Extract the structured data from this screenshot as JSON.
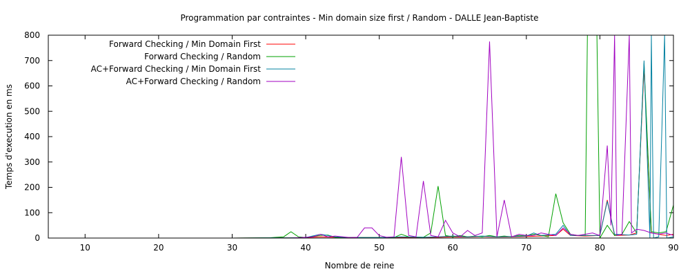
{
  "chart_data": {
    "type": "line",
    "title": "Programmation par contraintes - Min domain size first / Random - DALLE Jean-Baptiste",
    "xlabel": "Nombre de reine",
    "ylabel": "Temps d'execution en ms",
    "xlim": [
      5,
      90
    ],
    "ylim": [
      0,
      800
    ],
    "xticks": [
      10,
      20,
      30,
      40,
      50,
      60,
      70,
      80,
      90
    ],
    "yticks": [
      0,
      100,
      200,
      300,
      400,
      500,
      600,
      700,
      800
    ],
    "grid": false,
    "legend_position": "top-left",
    "series": [
      {
        "name": "Forward Checking / Min Domain First",
        "color": "#ff0000",
        "dashed": false,
        "points": [
          [
            6,
            0
          ],
          [
            10,
            0
          ],
          [
            20,
            0
          ],
          [
            30,
            0
          ],
          [
            38,
            1
          ],
          [
            40,
            2
          ],
          [
            42,
            5
          ],
          [
            44,
            3
          ],
          [
            46,
            2
          ],
          [
            50,
            2
          ],
          [
            53,
            3
          ],
          [
            55,
            2
          ],
          [
            58,
            3
          ],
          [
            60,
            5
          ],
          [
            62,
            4
          ],
          [
            64,
            6
          ],
          [
            66,
            4
          ],
          [
            68,
            5
          ],
          [
            70,
            6
          ],
          [
            72,
            8
          ],
          [
            74,
            10
          ],
          [
            75,
            35
          ],
          [
            76,
            10
          ],
          [
            78,
            8
          ],
          [
            80,
            10
          ],
          [
            81,
            150
          ],
          [
            82,
            10
          ],
          [
            84,
            12
          ],
          [
            85,
            20
          ],
          [
            86,
            670
          ],
          [
            87,
            20
          ],
          [
            88,
            15
          ],
          [
            89,
            10
          ],
          [
            90,
            15
          ]
        ]
      },
      {
        "name": "Forward Checking / Random",
        "color": "#00a000",
        "dashed": false,
        "points": [
          [
            6,
            0
          ],
          [
            8,
            0
          ],
          [
            12,
            0
          ],
          [
            20,
            0
          ],
          [
            30,
            0
          ],
          [
            35,
            1
          ],
          [
            36,
            3
          ],
          [
            37,
            5
          ],
          [
            38,
            25
          ],
          [
            39,
            5
          ],
          [
            40,
            2
          ],
          [
            42,
            10
          ],
          [
            43,
            12
          ],
          [
            44,
            3
          ],
          [
            46,
            2
          ],
          [
            50,
            2
          ],
          [
            52,
            2
          ],
          [
            53,
            15
          ],
          [
            54,
            5
          ],
          [
            56,
            3
          ],
          [
            57,
            20
          ],
          [
            58,
            205
          ],
          [
            59,
            10
          ],
          [
            60,
            5
          ],
          [
            61,
            10
          ],
          [
            62,
            5
          ],
          [
            63,
            8
          ],
          [
            64,
            5
          ],
          [
            65,
            10
          ],
          [
            66,
            5
          ],
          [
            67,
            8
          ],
          [
            68,
            5
          ],
          [
            69,
            10
          ],
          [
            70,
            8
          ],
          [
            71,
            15
          ],
          [
            72,
            10
          ],
          [
            73,
            5
          ],
          [
            74,
            175
          ],
          [
            75,
            60
          ],
          [
            76,
            15
          ],
          [
            77,
            10
          ],
          [
            78,
            10
          ],
          [
            78.3,
            800
          ],
          [
            79,
            800
          ],
          [
            79.6,
            800
          ],
          [
            80,
            0
          ],
          [
            81,
            50
          ],
          [
            82,
            10
          ],
          [
            83,
            15
          ],
          [
            84,
            65
          ],
          [
            85,
            20
          ],
          [
            86,
            690
          ],
          [
            87,
            25
          ],
          [
            88,
            20
          ],
          [
            89,
            25
          ],
          [
            90,
            130
          ]
        ]
      },
      {
        "name": "AC+Forward Checking / Min Domain First",
        "color": "#0080a0",
        "dashed": false,
        "points": [
          [
            6,
            0
          ],
          [
            10,
            0
          ],
          [
            20,
            0
          ],
          [
            30,
            0
          ],
          [
            38,
            1
          ],
          [
            40,
            2
          ],
          [
            42,
            15
          ],
          [
            43,
            10
          ],
          [
            44,
            5
          ],
          [
            46,
            2
          ],
          [
            50,
            2
          ],
          [
            53,
            5
          ],
          [
            56,
            3
          ],
          [
            58,
            5
          ],
          [
            60,
            8
          ],
          [
            62,
            5
          ],
          [
            64,
            8
          ],
          [
            66,
            5
          ],
          [
            68,
            6
          ],
          [
            70,
            8
          ],
          [
            71,
            20
          ],
          [
            72,
            10
          ],
          [
            74,
            15
          ],
          [
            75,
            50
          ],
          [
            76,
            10
          ],
          [
            78,
            10
          ],
          [
            80,
            10
          ],
          [
            81,
            145
          ],
          [
            82,
            15
          ],
          [
            84,
            12
          ],
          [
            85,
            15
          ],
          [
            86,
            700
          ],
          [
            86.8,
            0
          ],
          [
            87,
            800
          ],
          [
            87.3,
            0
          ],
          [
            88,
            5
          ],
          [
            88.8,
            800
          ],
          [
            89.1,
            0
          ],
          [
            90,
            5
          ]
        ]
      },
      {
        "name": "AC+Forward Checking / Random",
        "color": "#a000c0",
        "dashed": false,
        "points": [
          [
            6,
            0
          ],
          [
            13,
            0
          ],
          [
            14,
            0
          ],
          [
            20,
            0
          ],
          [
            26,
            0
          ],
          [
            28,
            0
          ],
          [
            30,
            0
          ],
          [
            34,
            0
          ],
          [
            36,
            0
          ],
          [
            38,
            0
          ],
          [
            40,
            3
          ],
          [
            41,
            5
          ],
          [
            42,
            15
          ],
          [
            43,
            5
          ],
          [
            44,
            8
          ],
          [
            46,
            2
          ],
          [
            47,
            3
          ],
          [
            48,
            40
          ],
          [
            49,
            40
          ],
          [
            50,
            10
          ],
          [
            51,
            3
          ],
          [
            52,
            5
          ],
          [
            53,
            320
          ],
          [
            54,
            10
          ],
          [
            55,
            5
          ],
          [
            56,
            225
          ],
          [
            57,
            10
          ],
          [
            58,
            5
          ],
          [
            59,
            70
          ],
          [
            60,
            20
          ],
          [
            61,
            5
          ],
          [
            62,
            30
          ],
          [
            63,
            10
          ],
          [
            64,
            20
          ],
          [
            65,
            775
          ],
          [
            66,
            5
          ],
          [
            67,
            150
          ],
          [
            68,
            5
          ],
          [
            69,
            15
          ],
          [
            70,
            10
          ],
          [
            71,
            10
          ],
          [
            72,
            20
          ],
          [
            73,
            15
          ],
          [
            74,
            10
          ],
          [
            75,
            40
          ],
          [
            76,
            15
          ],
          [
            77,
            10
          ],
          [
            78,
            15
          ],
          [
            79,
            20
          ],
          [
            80,
            10
          ],
          [
            81,
            365
          ],
          [
            81.5,
            50
          ],
          [
            82,
            800
          ],
          [
            82.3,
            10
          ],
          [
            83,
            15
          ],
          [
            84,
            800
          ],
          [
            84.3,
            20
          ],
          [
            85,
            35
          ],
          [
            86,
            30
          ],
          [
            87,
            20
          ],
          [
            88,
            15
          ],
          [
            89,
            20
          ],
          [
            90,
            10
          ]
        ]
      }
    ]
  }
}
